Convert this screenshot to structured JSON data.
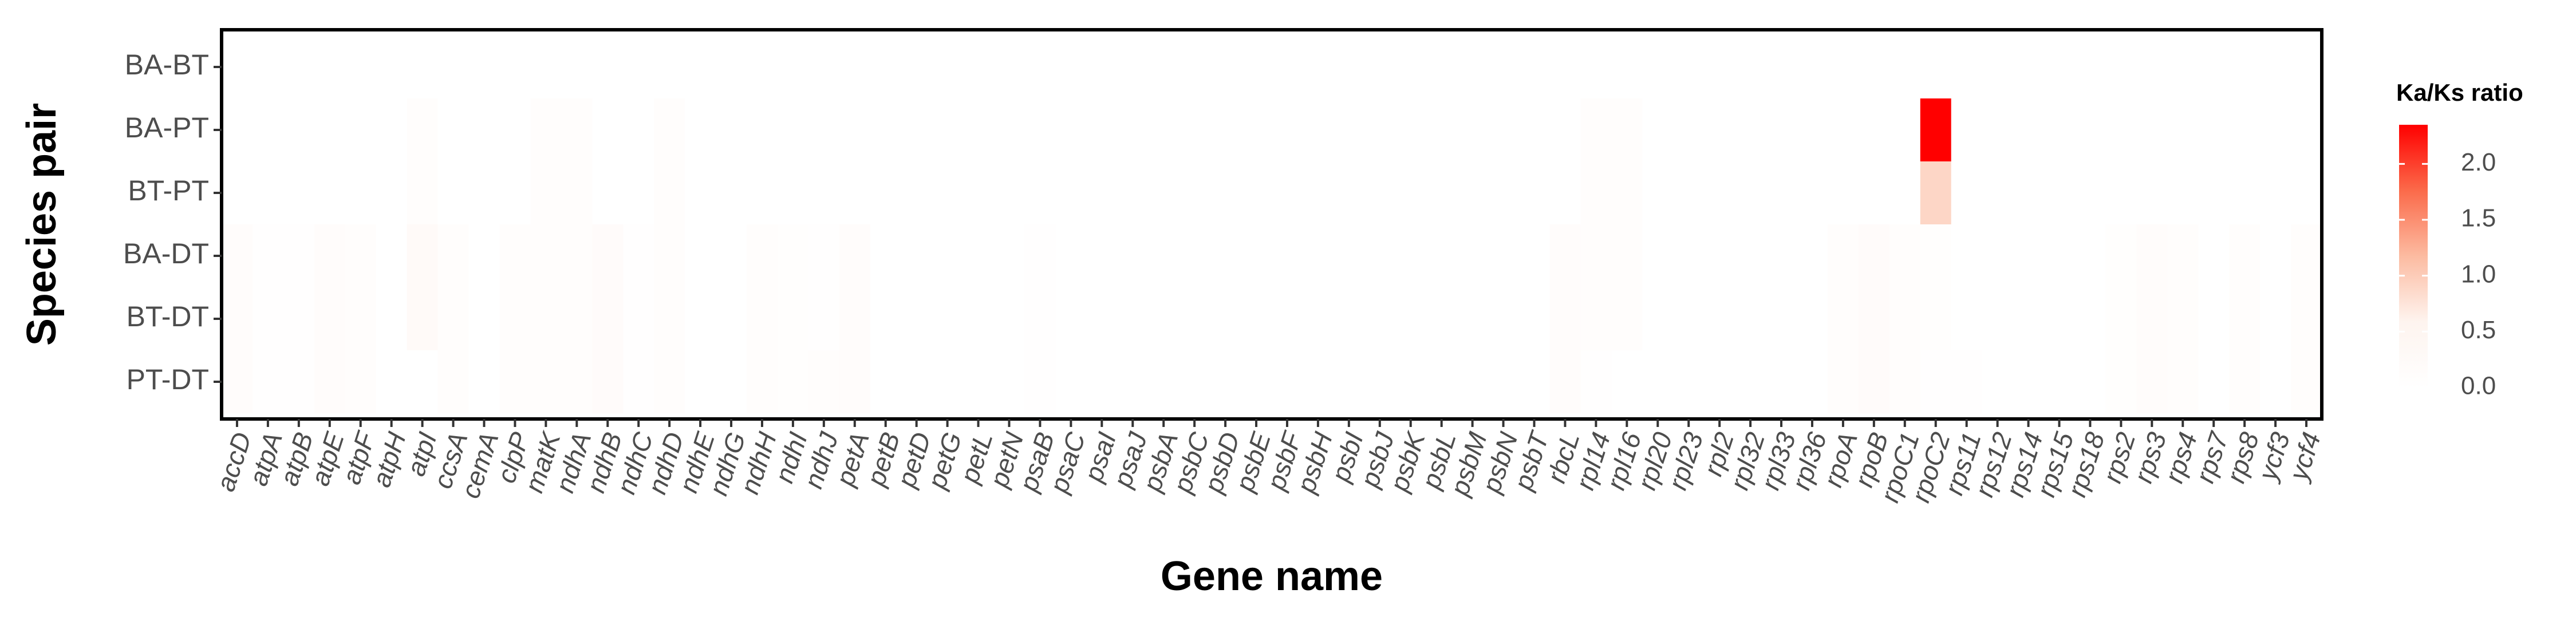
{
  "chart_data": {
    "type": "heatmap",
    "x_label": "Gene name",
    "y_label": "Species pair",
    "legend_title": "Ka/Ks ratio",
    "x": [
      "accD",
      "atpA",
      "atpB",
      "atpE",
      "atpF",
      "atpH",
      "atpI",
      "ccsA",
      "cemA",
      "clpP",
      "matK",
      "ndhA",
      "ndhB",
      "ndhC",
      "ndhD",
      "ndhE",
      "ndhG",
      "ndhH",
      "ndhI",
      "ndhJ",
      "petA",
      "petB",
      "petD",
      "petG",
      "petL",
      "petN",
      "psaB",
      "psaC",
      "psaI",
      "psaJ",
      "psbA",
      "psbC",
      "psbD",
      "psbE",
      "psbF",
      "psbH",
      "psbI",
      "psbJ",
      "psbK",
      "psbL",
      "psbM",
      "psbN",
      "psbT",
      "rbcL",
      "rpl14",
      "rpl16",
      "rpl20",
      "rpl23",
      "rpl2",
      "rpl32",
      "rpl33",
      "rpl36",
      "rpoA",
      "rpoB",
      "rpoC1",
      "rpoC2",
      "rps11",
      "rps12",
      "rps14",
      "rps15",
      "rps18",
      "rps2",
      "rps3",
      "rps4",
      "rps7",
      "rps8",
      "ycf3",
      "ycf4"
    ],
    "y": [
      "BA-BT",
      "BA-PT",
      "BT-PT",
      "BA-DT",
      "BT-DT",
      "PT-DT"
    ],
    "values": [
      [
        0,
        0,
        0,
        0,
        0,
        0,
        0,
        0,
        0,
        0,
        0,
        0,
        0,
        0,
        0,
        0,
        0,
        0,
        0,
        0,
        0,
        0,
        0,
        0,
        0,
        0,
        0,
        0,
        0,
        0,
        0,
        0,
        0,
        0,
        0,
        0,
        0,
        0,
        0,
        0,
        0,
        0,
        0,
        0,
        0,
        0,
        0,
        0,
        0,
        0,
        0,
        0,
        0,
        0,
        0,
        0,
        0,
        0,
        0,
        0,
        0,
        0,
        0,
        0,
        0,
        0,
        0,
        0
      ],
      [
        0,
        0,
        0,
        0,
        0,
        0,
        0.1,
        0,
        0,
        0,
        0.12,
        0.12,
        0,
        0,
        0.1,
        0,
        0,
        0,
        0,
        0,
        0,
        0,
        0,
        0,
        0,
        0,
        0,
        0,
        0,
        0,
        0,
        0,
        0,
        0,
        0,
        0,
        0,
        0,
        0,
        0,
        0,
        0,
        0,
        0,
        0.1,
        0.1,
        0,
        0,
        0,
        0,
        0,
        0,
        0,
        0,
        0,
        2.35,
        0,
        0,
        0,
        0,
        0,
        0,
        0,
        0,
        0,
        0,
        0,
        0
      ],
      [
        0,
        0,
        0,
        0,
        0,
        0,
        0.1,
        0,
        0,
        0,
        0.12,
        0.12,
        0,
        0,
        0.1,
        0,
        0,
        0,
        0,
        0,
        0,
        0,
        0,
        0,
        0,
        0,
        0,
        0,
        0,
        0,
        0,
        0,
        0,
        0,
        0,
        0,
        0,
        0,
        0,
        0,
        0,
        0,
        0,
        0,
        0.1,
        0.1,
        0,
        0,
        0,
        0,
        0,
        0,
        0,
        0,
        0,
        0.9,
        0,
        0,
        0,
        0,
        0,
        0,
        0,
        0,
        0,
        0,
        0,
        0
      ],
      [
        0.15,
        0.05,
        0.05,
        0.15,
        0.1,
        0,
        0.25,
        0.1,
        0,
        0.1,
        0.12,
        0.1,
        0.2,
        0.05,
        0.12,
        0,
        0,
        0.12,
        0.08,
        0.05,
        0.15,
        0,
        0,
        0,
        0,
        0,
        0.05,
        0,
        0,
        0,
        0,
        0,
        0,
        0,
        0,
        0,
        0,
        0,
        0,
        0,
        0,
        0,
        0,
        0.15,
        0.12,
        0.1,
        0,
        0,
        0,
        0,
        0,
        0,
        0.1,
        0.2,
        0.12,
        0.08,
        0,
        0,
        0,
        0,
        0,
        0.08,
        0.15,
        0.12,
        0,
        0.1,
        0,
        0.12
      ],
      [
        0.15,
        0.05,
        0.05,
        0.15,
        0.1,
        0,
        0.25,
        0.1,
        0,
        0.1,
        0.12,
        0.1,
        0.2,
        0.05,
        0.12,
        0,
        0,
        0.12,
        0.08,
        0.05,
        0.15,
        0,
        0,
        0,
        0,
        0,
        0.05,
        0,
        0,
        0,
        0,
        0,
        0,
        0,
        0,
        0,
        0,
        0,
        0,
        0,
        0,
        0,
        0,
        0.15,
        0.12,
        0.1,
        0,
        0,
        0,
        0,
        0,
        0,
        0.1,
        0.2,
        0.12,
        0.08,
        0,
        0,
        0,
        0,
        0,
        0.08,
        0.15,
        0.12,
        0,
        0.1,
        0,
        0.12
      ],
      [
        0.15,
        0.05,
        0.05,
        0.15,
        0.1,
        0,
        0,
        0.1,
        0,
        0.1,
        0.12,
        0.1,
        0.2,
        0.05,
        0.12,
        0,
        0,
        0.12,
        0.08,
        0.1,
        0.15,
        0,
        0,
        0,
        0,
        0,
        0.05,
        0,
        0,
        0,
        0,
        0,
        0,
        0,
        0,
        0,
        0,
        0,
        0,
        0,
        0,
        0,
        0,
        0.15,
        0.05,
        0,
        0,
        0,
        0,
        0,
        0,
        0,
        0.1,
        0.2,
        0.12,
        0.05,
        0.05,
        0,
        0,
        0,
        0,
        0.08,
        0.15,
        0.12,
        0,
        0.1,
        0,
        0.12
      ]
    ],
    "zlim": [
      0,
      2.35
    ],
    "colors": [
      "#ffffff",
      "#fef4ef",
      "#fcbba1",
      "#fb6a4a",
      "#ff0000"
    ],
    "colorbar_ticks": [
      {
        "value": 0,
        "label": "0.0"
      },
      0.5,
      {
        "value": 1,
        "label": "1.0"
      },
      1.5,
      {
        "value": 2,
        "label": "2.0"
      }
    ]
  }
}
